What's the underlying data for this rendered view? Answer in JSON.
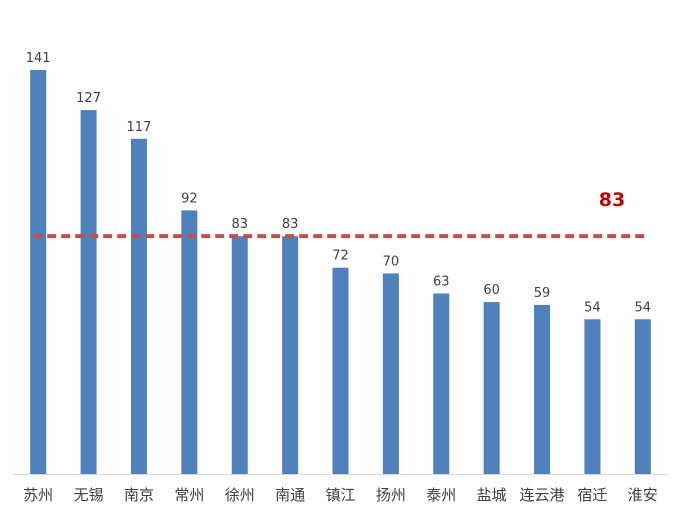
{
  "chart_data": {
    "type": "bar",
    "categories": [
      "苏州",
      "无锡",
      "南京",
      "常州",
      "徐州",
      "南通",
      "镇江",
      "扬州",
      "泰州",
      "盐城",
      "连云港",
      "宿迁",
      "淮安"
    ],
    "values": [
      141,
      127,
      117,
      92,
      83,
      83,
      72,
      70,
      63,
      60,
      59,
      54,
      54
    ],
    "data_labels": [
      "141",
      "127",
      "117",
      "92",
      "83",
      "83",
      "72",
      "70",
      "63",
      "60",
      "59",
      "54",
      "54"
    ],
    "reference_line": {
      "value": 83,
      "label": "83",
      "style": "dashed"
    },
    "title": "",
    "xlabel": "",
    "ylabel": "",
    "ylim": [
      0,
      141
    ],
    "grid": false,
    "legend": "none",
    "colors": {
      "bar": "#4F81BD",
      "reference_line": "#C0504D",
      "reference_label": "#C00000",
      "axis": "#D9D9D9",
      "text": "#404040"
    }
  }
}
